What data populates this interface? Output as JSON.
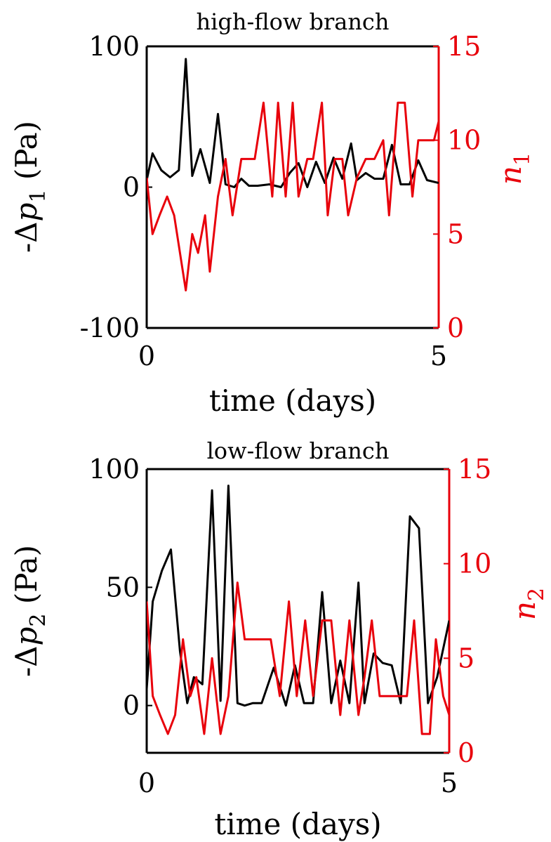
{
  "colors": {
    "left_axis": "#000000",
    "right_axis": "#e8000b"
  },
  "chart_data": [
    {
      "type": "line",
      "title": "high-flow branch",
      "xlabel": "time (days)",
      "ylabel": {
        "pre": "-Δ",
        "var": "p",
        "sub": "1",
        "post": " (Pa)"
      },
      "y2label": {
        "var": "n",
        "sub": "1"
      },
      "xlim": [
        0,
        5
      ],
      "ylim": [
        -100,
        100
      ],
      "y2lim": [
        0,
        15
      ],
      "x_ticks": [
        "0",
        "5"
      ],
      "y_ticks": [
        {
          "v": 100,
          "t": "100"
        },
        {
          "v": 0,
          "t": "0"
        },
        {
          "v": -100,
          "t": "-100"
        }
      ],
      "y2_ticks": [
        {
          "v": 15,
          "t": "15"
        },
        {
          "v": 10,
          "t": "10"
        },
        {
          "v": 5,
          "t": "5"
        },
        {
          "v": 0,
          "t": "0"
        }
      ],
      "series": [
        {
          "axis": "left",
          "color": "#000000",
          "x": [
            0,
            0.1,
            0.25,
            0.4,
            0.55,
            0.67,
            0.78,
            0.92,
            1.08,
            1.22,
            1.35,
            1.5,
            1.62,
            1.75,
            1.9,
            2.1,
            2.3,
            2.45,
            2.6,
            2.75,
            2.9,
            3.05,
            3.2,
            3.35,
            3.5,
            3.6,
            3.75,
            3.9,
            4.05,
            4.2,
            4.35,
            4.5,
            4.65,
            4.8,
            5
          ],
          "y": [
            5,
            24,
            12,
            7,
            12,
            91,
            8,
            27,
            3,
            52,
            2,
            0,
            6,
            1,
            1,
            2,
            0,
            10,
            17,
            0,
            18,
            3,
            21,
            6,
            31,
            5,
            10,
            6,
            6,
            30,
            2,
            2,
            19,
            5,
            3
          ]
        },
        {
          "axis": "right",
          "color": "#e8000b",
          "x": [
            0,
            0.1,
            0.22,
            0.35,
            0.47,
            0.67,
            0.78,
            0.88,
            1.0,
            1.08,
            1.22,
            1.35,
            1.47,
            1.62,
            1.75,
            1.85,
            2.0,
            2.15,
            2.25,
            2.38,
            2.5,
            2.6,
            2.75,
            2.85,
            3.0,
            3.1,
            3.22,
            3.35,
            3.45,
            3.6,
            3.75,
            3.9,
            4.05,
            4.15,
            4.3,
            4.42,
            4.55,
            4.65,
            4.78,
            4.92,
            5.0
          ],
          "y": [
            8,
            5,
            6,
            7,
            6,
            2,
            5,
            4,
            6,
            3,
            7,
            9,
            6,
            9,
            9,
            9,
            12,
            7,
            12,
            7,
            12,
            7,
            9,
            9,
            12,
            6,
            9,
            9,
            6,
            8,
            9,
            9,
            10,
            6,
            12,
            12,
            7,
            10,
            10,
            10,
            11
          ]
        }
      ]
    },
    {
      "type": "line",
      "title": "low-flow branch",
      "xlabel": "time (days)",
      "ylabel": {
        "pre": "-Δ",
        "var": "p",
        "sub": "2",
        "post": " (Pa)"
      },
      "y2label": {
        "var": "n",
        "sub": "2"
      },
      "xlim": [
        0,
        5
      ],
      "ylim": [
        -20,
        100
      ],
      "y2lim": [
        0,
        15
      ],
      "x_ticks": [
        "0",
        "5"
      ],
      "y_ticks": [
        {
          "v": 100,
          "t": "100"
        },
        {
          "v": 50,
          "t": "50"
        },
        {
          "v": 0,
          "t": "0"
        }
      ],
      "y2_ticks": [
        {
          "v": 15,
          "t": "15"
        },
        {
          "v": 10,
          "t": "10"
        },
        {
          "v": 5,
          "t": "5"
        },
        {
          "v": 0,
          "t": "0"
        }
      ],
      "series": [
        {
          "axis": "left",
          "color": "#000000",
          "x": [
            0,
            0.1,
            0.25,
            0.4,
            0.55,
            0.67,
            0.78,
            0.92,
            1.08,
            1.22,
            1.35,
            1.5,
            1.62,
            1.75,
            1.9,
            2.1,
            2.3,
            2.45,
            2.6,
            2.75,
            2.9,
            3.05,
            3.2,
            3.35,
            3.5,
            3.6,
            3.75,
            3.9,
            4.05,
            4.2,
            4.35,
            4.5,
            4.65,
            4.8,
            5
          ],
          "y": [
            7,
            44,
            57,
            66,
            23,
            1,
            12,
            9,
            91,
            2,
            93,
            1,
            0,
            1,
            1,
            16,
            0,
            17,
            1,
            1,
            48,
            1,
            19,
            1,
            52,
            1,
            22,
            18,
            17,
            1,
            80,
            75,
            1,
            12,
            36
          ]
        },
        {
          "axis": "right",
          "color": "#e8000b",
          "x": [
            0,
            0.1,
            0.22,
            0.35,
            0.47,
            0.6,
            0.72,
            0.82,
            0.95,
            1.08,
            1.22,
            1.35,
            1.5,
            1.62,
            1.75,
            1.9,
            2.05,
            2.2,
            2.35,
            2.48,
            2.62,
            2.75,
            2.9,
            3.05,
            3.2,
            3.35,
            3.5,
            3.6,
            3.72,
            3.85,
            4.0,
            4.15,
            4.3,
            4.42,
            4.55,
            4.68,
            4.78,
            4.9,
            5.0
          ],
          "y": [
            8,
            3,
            2,
            1,
            2,
            6,
            3,
            4,
            1,
            5,
            1,
            3,
            9,
            6,
            6,
            6,
            6,
            3,
            8,
            3,
            7,
            3,
            7,
            7,
            2,
            7,
            2,
            4,
            7,
            3,
            3,
            3,
            3,
            7,
            1,
            1,
            6,
            3,
            2
          ]
        }
      ]
    }
  ]
}
